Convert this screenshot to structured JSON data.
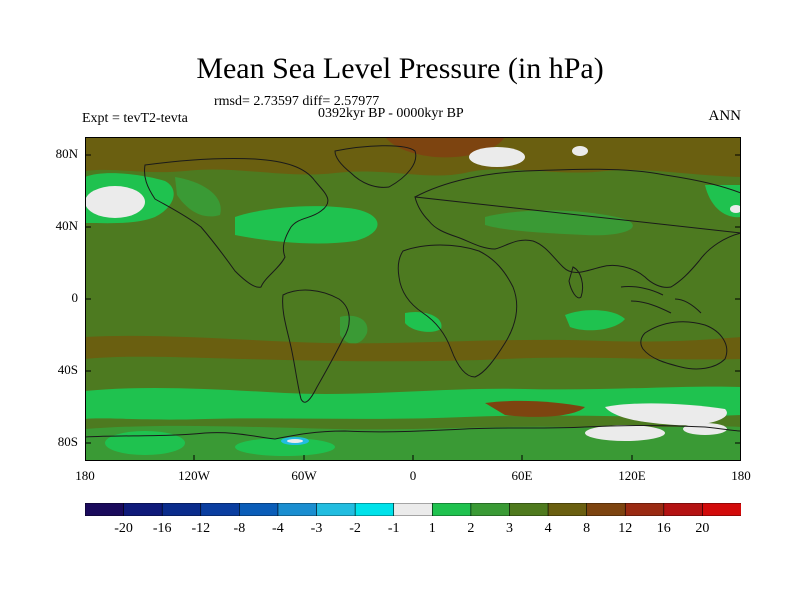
{
  "header": {
    "title": "Mean Sea Level Pressure (in hPa)",
    "stats": "rmsd= 2.73597 diff= 2.57977",
    "period": "0392kyr BP - 0000kyr BP",
    "experiment": "Expt = tevT2-tevta",
    "season": "ANN"
  },
  "axes": {
    "lat_labels": [
      "80N",
      "40N",
      "0",
      "40S",
      "80S"
    ],
    "lon_labels": [
      "180",
      "120W",
      "60W",
      "0",
      "60E",
      "120E",
      "180"
    ]
  },
  "colorbar": {
    "labels": [
      "-20",
      "-16",
      "-12",
      "-8",
      "-4",
      "-3",
      "-2",
      "-1",
      "1",
      "2",
      "3",
      "4",
      "8",
      "12",
      "16",
      "20"
    ],
    "colors": [
      "#1a0a5c",
      "#0f1a7a",
      "#0a2c8c",
      "#0a3ea0",
      "#0a5db8",
      "#1a8ed0",
      "#22bde0",
      "#00e2ea",
      "#ebebeb",
      "#1fc24f",
      "#3a9a35",
      "#4f7a1e",
      "#6a5f10",
      "#7d4410",
      "#9a2a12",
      "#b41212",
      "#d20a0a"
    ]
  },
  "map": {
    "background_color": "#4d7a20",
    "coast_color": "#1a1a1a"
  }
}
